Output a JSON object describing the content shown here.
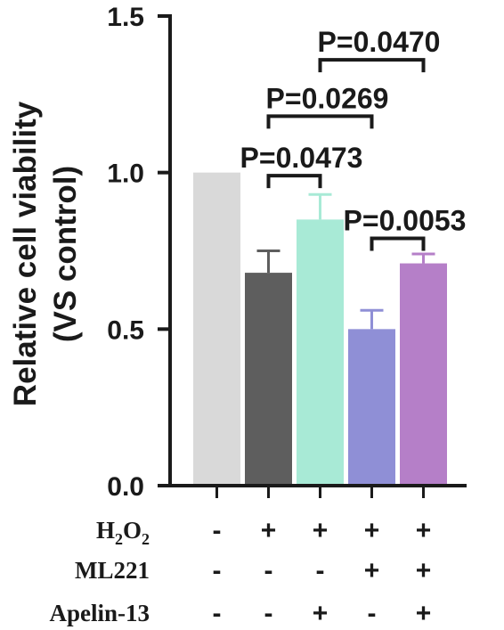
{
  "chart_data": {
    "type": "bar",
    "title": "",
    "ylabel_lines": [
      "Relative cell viability",
      "(VS control)"
    ],
    "ylim": [
      0,
      1.5
    ],
    "yticks": [
      "0.0",
      "0.5",
      "1.0",
      "1.5"
    ],
    "ytick_values": [
      0,
      0.5,
      1.0,
      1.5
    ],
    "grid": false,
    "values": [
      1.0,
      0.68,
      0.85,
      0.5,
      0.71
    ],
    "errors": [
      0,
      0.07,
      0.08,
      0.06,
      0.03
    ],
    "colors": [
      "#d9d9d9",
      "#5e5e5e",
      "#a8ead6",
      "#8f8fd6",
      "#b57fc8"
    ],
    "conditions": [
      {
        "name": "H2O2",
        "signs": [
          "-",
          "+",
          "+",
          "+",
          "+"
        ]
      },
      {
        "name": "ML221",
        "signs": [
          "-",
          "-",
          "-",
          "+",
          "+"
        ]
      },
      {
        "name": "Apelin-13",
        "signs": [
          "-",
          "-",
          "+",
          "-",
          "+"
        ]
      }
    ],
    "comparisons": [
      {
        "from": 1,
        "to": 2,
        "label": "P=0.0473",
        "y": 0.99
      },
      {
        "from": 1,
        "to": 3,
        "label": "P=0.0269",
        "y": 1.18
      },
      {
        "from": 3,
        "to": 4,
        "label": "P=0.0053",
        "y": 0.79
      },
      {
        "from": 2,
        "to": 4,
        "label": "P=0.0470",
        "y": 1.36
      }
    ]
  }
}
